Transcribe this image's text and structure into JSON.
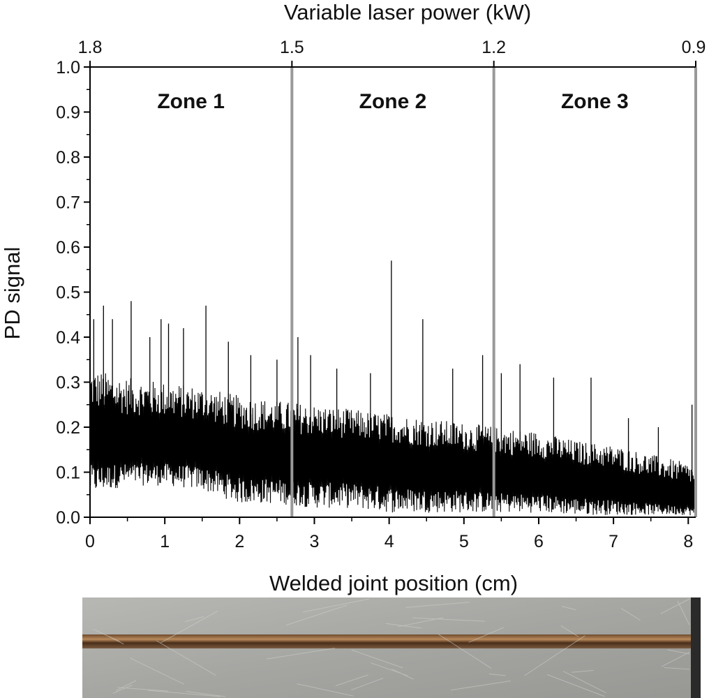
{
  "chart_data": {
    "type": "line",
    "xlabel": "Welded joint position (cm)",
    "ylabel": "PD signal",
    "top_xlabel": "Variable laser power (kW)",
    "xlim": [
      0,
      8.1
    ],
    "ylim": [
      0,
      1.0
    ],
    "x_ticks": [
      0,
      1,
      2,
      3,
      4,
      5,
      6,
      7,
      8
    ],
    "y_ticks": [
      0.0,
      0.1,
      0.2,
      0.3,
      0.4,
      0.5,
      0.6,
      0.7,
      0.8,
      0.9,
      1.0
    ],
    "y_tick_labels": [
      "0.0",
      "0.1",
      "0.2",
      "0.3",
      "0.4",
      "0.5",
      "0.6",
      "0.7",
      "0.8",
      "0.9",
      "1.0"
    ],
    "top_ticks": [
      {
        "x": 0,
        "label": "1.8"
      },
      {
        "x": 2.7,
        "label": "1.5"
      },
      {
        "x": 5.4,
        "label": "1.2"
      },
      {
        "x": 8.1,
        "label": "0.9"
      }
    ],
    "zone_boundaries": [
      2.7,
      5.4,
      8.1
    ],
    "zones": [
      {
        "label": "Zone 1",
        "x_start": 0,
        "x_end": 2.7
      },
      {
        "label": "Zone 2",
        "x_start": 2.7,
        "x_end": 5.4
      },
      {
        "label": "Zone 3",
        "x_start": 5.4,
        "x_end": 8.1
      }
    ],
    "series": [
      {
        "trend": {
          "x": [
            0,
            0.5,
            1.0,
            1.5,
            2.0,
            2.5,
            3.0,
            3.5,
            4.0,
            4.5,
            5.0,
            5.5,
            6.0,
            6.5,
            7.0,
            7.5,
            8.0,
            8.1
          ],
          "mean": [
            0.17,
            0.16,
            0.16,
            0.155,
            0.135,
            0.13,
            0.125,
            0.12,
            0.115,
            0.105,
            0.1,
            0.09,
            0.085,
            0.075,
            0.065,
            0.05,
            0.04,
            0.035
          ],
          "low": [
            0.05,
            0.07,
            0.07,
            0.06,
            0.03,
            0.03,
            0.02,
            0.02,
            0.01,
            0.01,
            0.01,
            0.01,
            0.01,
            0.005,
            0.005,
            0.005,
            0.005,
            0.0
          ],
          "high": [
            0.33,
            0.31,
            0.3,
            0.29,
            0.27,
            0.26,
            0.25,
            0.24,
            0.23,
            0.22,
            0.21,
            0.2,
            0.19,
            0.17,
            0.16,
            0.14,
            0.12,
            0.11
          ]
        },
        "peaks": [
          {
            "x": 0.05,
            "y": 0.44
          },
          {
            "x": 0.18,
            "y": 0.47
          },
          {
            "x": 0.3,
            "y": 0.44
          },
          {
            "x": 0.55,
            "y": 0.48
          },
          {
            "x": 0.8,
            "y": 0.4
          },
          {
            "x": 0.95,
            "y": 0.44
          },
          {
            "x": 1.05,
            "y": 0.43
          },
          {
            "x": 1.25,
            "y": 0.42
          },
          {
            "x": 1.55,
            "y": 0.47
          },
          {
            "x": 1.85,
            "y": 0.39
          },
          {
            "x": 2.15,
            "y": 0.36
          },
          {
            "x": 2.5,
            "y": 0.35
          },
          {
            "x": 2.78,
            "y": 0.4
          },
          {
            "x": 2.95,
            "y": 0.36
          },
          {
            "x": 3.3,
            "y": 0.33
          },
          {
            "x": 3.75,
            "y": 0.32
          },
          {
            "x": 4.03,
            "y": 0.57
          },
          {
            "x": 4.45,
            "y": 0.44
          },
          {
            "x": 4.85,
            "y": 0.33
          },
          {
            "x": 5.25,
            "y": 0.36
          },
          {
            "x": 5.5,
            "y": 0.32
          },
          {
            "x": 5.75,
            "y": 0.34
          },
          {
            "x": 6.2,
            "y": 0.31
          },
          {
            "x": 6.7,
            "y": 0.31
          },
          {
            "x": 7.2,
            "y": 0.22
          },
          {
            "x": 7.6,
            "y": 0.2
          },
          {
            "x": 8.05,
            "y": 0.25
          }
        ]
      }
    ]
  },
  "photo": {
    "plate_color": "#a9a9a6",
    "plate_shade": "#8f8f8c",
    "seam_color": "#5a3a22",
    "seam_highlight": "#b98a5c",
    "edge_color": "#2a2a2a"
  },
  "colors": {
    "signal": "#000000",
    "boundary": "#999999",
    "axis": "#000000"
  }
}
